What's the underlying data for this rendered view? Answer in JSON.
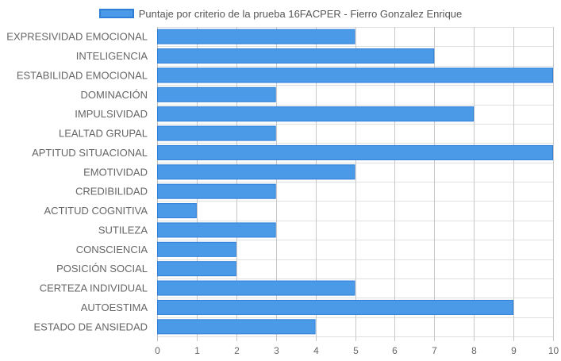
{
  "chart_data": {
    "type": "bar",
    "orientation": "horizontal",
    "series": [
      {
        "name": "Puntaje por criterio de la prueba 16FACPER - Fierro Gonzalez Enrique",
        "values": [
          5,
          7,
          10,
          3,
          8,
          3,
          10,
          5,
          3,
          1,
          3,
          2,
          2,
          5,
          9,
          4
        ]
      }
    ],
    "categories": [
      "EXPRESIVIDAD EMOCIONAL",
      "INTELIGENCIA",
      "ESTABILIDAD EMOCIONAL",
      "DOMINACIÓN",
      "IMPULSIVIDAD",
      "LEALTAD GRUPAL",
      "APTITUD SITUACIONAL",
      "EMOTIVIDAD",
      "CREDIBILIDAD",
      "ACTITUD COGNITIVA",
      "SUTILEZA",
      "CONSCIENCIA",
      "POSICIÓN SOCIAL",
      "CERTEZA INDIVIDUAL",
      "AUTOESTIMA",
      "ESTADO DE ANSIEDAD"
    ],
    "xlim": [
      0,
      10
    ],
    "xticks": [
      "0",
      "1",
      "2",
      "3",
      "4",
      "5",
      "6",
      "7",
      "8",
      "9",
      "10"
    ],
    "grid": true,
    "legend_position": "top-center",
    "colors": {
      "bar_fill": "#4a9ae8",
      "bar_border": "#2f7fd8",
      "grid": "#e0e0e0",
      "axis_text": "#666666"
    }
  }
}
